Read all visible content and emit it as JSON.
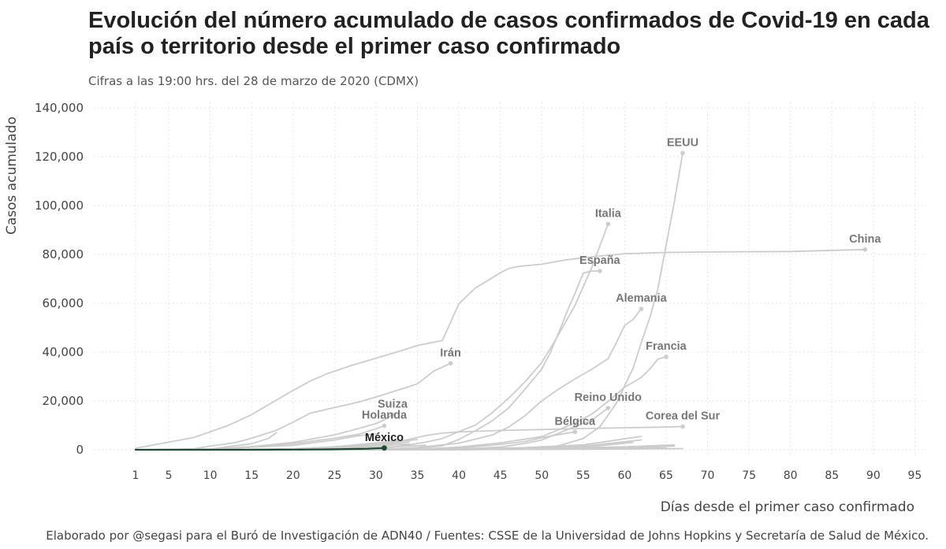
{
  "title": "Evolución del número acumulado de casos confirmados de Covid-19 en cada país o territorio desde el primer caso confirmado",
  "subtitle": "Cifras a las 19:00 hrs. del 28 de marzo de 2020 (CDMX)",
  "caption": "Elaborado por @segasi para el Buró de Investigación de ADN40 / Fuentes: CSSE de la Universidad de Johns Hopkins y Secretaría de Salud de México.",
  "colors": {
    "background_series": "#cccccc",
    "highlight": "#1b4d2e",
    "label": "#777777",
    "grid": "#e6e6e6"
  },
  "chart_data": {
    "type": "line",
    "xlabel": "Días desde el primer caso confirmado",
    "ylabel": "Casos acumulado",
    "xlim": [
      1,
      97
    ],
    "ylim": [
      0,
      140000
    ],
    "x_ticks": [
      1,
      5,
      10,
      15,
      20,
      25,
      30,
      35,
      40,
      45,
      50,
      55,
      60,
      65,
      70,
      75,
      80,
      85,
      90,
      95
    ],
    "y_ticks": [
      0,
      20000,
      40000,
      60000,
      80000,
      100000,
      120000,
      140000
    ],
    "y_tick_labels": [
      "0",
      "20,000",
      "40,000",
      "60,000",
      "80,000",
      "100,000",
      "120,000",
      "140,000"
    ],
    "grid": true,
    "legend": "none",
    "highlight_series": "México",
    "series": [
      {
        "name": "China",
        "x": [
          1,
          8,
          12,
          15,
          18,
          20,
          22,
          24,
          27,
          30,
          33,
          35,
          38,
          40,
          42,
          43,
          44,
          45,
          46,
          47,
          50,
          53,
          56,
          60,
          65,
          70,
          80,
          89
        ],
        "y": [
          600,
          5000,
          9700,
          14400,
          20400,
          24300,
          28000,
          31000,
          34500,
          37500,
          40500,
          42700,
          44700,
          59800,
          66300,
          68300,
          70400,
          72500,
          74200,
          75000,
          76000,
          77800,
          79000,
          80300,
          80800,
          81000,
          81200,
          82000
        ]
      },
      {
        "name": "Italia",
        "x": [
          1,
          20,
          25,
          28,
          30,
          32,
          34,
          36,
          38,
          40,
          42,
          44,
          46,
          48,
          50,
          52,
          54,
          56,
          58
        ],
        "y": [
          2,
          3,
          3,
          150,
          400,
          1100,
          2000,
          3100,
          4600,
          7400,
          10100,
          15100,
          21100,
          27900,
          35700,
          47000,
          59100,
          74400,
          92500
        ]
      },
      {
        "name": "EEUU",
        "x": [
          1,
          30,
          40,
          45,
          48,
          50,
          52,
          55,
          57,
          59,
          61,
          62,
          63,
          64,
          65,
          66,
          67
        ],
        "y": [
          1,
          15,
          60,
          200,
          500,
          1000,
          1600,
          4600,
          9400,
          19100,
          33300,
          43800,
          53700,
          65800,
          83800,
          101600,
          121500
        ]
      },
      {
        "name": "España",
        "x": [
          1,
          30,
          35,
          38,
          40,
          42,
          44,
          46,
          48,
          50,
          51,
          52,
          53,
          54,
          55,
          56,
          57
        ],
        "y": [
          1,
          100,
          600,
          1600,
          4200,
          7800,
          11800,
          17100,
          24900,
          33000,
          39600,
          47600,
          56200,
          64000,
          72300,
          73200,
          73200
        ]
      },
      {
        "name": "Alemania",
        "x": [
          1,
          30,
          35,
          40,
          44,
          46,
          48,
          50,
          52,
          54,
          56,
          58,
          59,
          60,
          61,
          62
        ],
        "y": [
          1,
          150,
          900,
          2700,
          6000,
          9300,
          14000,
          20000,
          24800,
          29000,
          32900,
          37300,
          43900,
          50900,
          53300,
          57700
        ]
      },
      {
        "name": "Francia",
        "x": [
          1,
          30,
          35,
          40,
          45,
          50,
          54,
          56,
          58,
          60,
          62,
          63,
          64,
          65
        ],
        "y": [
          1,
          100,
          200,
          1100,
          2800,
          5400,
          10900,
          14500,
          19800,
          25600,
          29600,
          32900,
          37100,
          38100
        ]
      },
      {
        "name": "Irán",
        "x": [
          1,
          5,
          8,
          10,
          13,
          15,
          18,
          20,
          22,
          25,
          28,
          30,
          33,
          35,
          37,
          39
        ],
        "y": [
          2,
          90,
          400,
          1500,
          2900,
          4700,
          8000,
          11300,
          14900,
          17300,
          19600,
          21600,
          24800,
          27000,
          32300,
          35400
        ]
      },
      {
        "name": "Reino Unido",
        "x": [
          1,
          30,
          35,
          40,
          45,
          48,
          50,
          52,
          54,
          56,
          58
        ],
        "y": [
          2,
          40,
          120,
          300,
          1100,
          2600,
          4000,
          6700,
          9500,
          12000,
          17100
        ]
      },
      {
        "name": "Corea del Sur",
        "x": [
          1,
          10,
          20,
          28,
          30,
          32,
          34,
          36,
          38,
          40,
          45,
          50,
          55,
          60,
          65,
          67
        ],
        "y": [
          1,
          20,
          30,
          800,
          1800,
          2900,
          4300,
          5800,
          6800,
          7300,
          7900,
          8300,
          8700,
          9000,
          9300,
          9500
        ]
      },
      {
        "name": "Suiza",
        "x": [
          1,
          5,
          10,
          15,
          20,
          25,
          28,
          30,
          31,
          32
        ],
        "y": [
          1,
          40,
          300,
          1300,
          3000,
          6100,
          8800,
          10700,
          12300,
          14300
        ]
      },
      {
        "name": "Holanda",
        "x": [
          1,
          5,
          10,
          15,
          20,
          25,
          28,
          30,
          31
        ],
        "y": [
          1,
          20,
          200,
          1100,
          2500,
          4700,
          6400,
          8600,
          9800
        ]
      },
      {
        "name": "Bélgica",
        "x": [
          1,
          30,
          35,
          38,
          40,
          44,
          48,
          50,
          52,
          54
        ],
        "y": [
          1,
          50,
          200,
          400,
          800,
          1800,
          3400,
          4900,
          6200,
          7300
        ]
      },
      {
        "name": "",
        "x": [
          1,
          10,
          15,
          17,
          18
        ],
        "y": [
          1,
          300,
          2500,
          4600,
          7000
        ]
      },
      {
        "name": "",
        "x": [
          1,
          10,
          20,
          25,
          28,
          30
        ],
        "y": [
          1,
          300,
          1800,
          4000,
          5800,
          6500
        ]
      },
      {
        "name": "",
        "x": [
          1,
          30,
          45,
          55,
          62
        ],
        "y": [
          1,
          40,
          400,
          2000,
          5500
        ]
      },
      {
        "name": "",
        "x": [
          1,
          30,
          45,
          55,
          62
        ],
        "y": [
          1,
          30,
          300,
          1500,
          4000
        ]
      },
      {
        "name": "",
        "x": [
          1,
          30,
          45,
          55,
          61
        ],
        "y": [
          1,
          20,
          200,
          1000,
          3000
        ]
      },
      {
        "name": "",
        "x": [
          1,
          30,
          40,
          50,
          60,
          66
        ],
        "y": [
          1,
          10,
          80,
          500,
          1200,
          2000
        ]
      },
      {
        "name": "",
        "x": [
          1,
          30,
          40,
          50,
          60,
          66
        ],
        "y": [
          1,
          10,
          50,
          300,
          800,
          1500
        ]
      },
      {
        "name": "",
        "x": [
          1,
          10,
          20,
          25,
          30,
          35
        ],
        "y": [
          1,
          50,
          300,
          900,
          2500,
          4200
        ]
      },
      {
        "name": "",
        "x": [
          1,
          10,
          20,
          25,
          30,
          33
        ],
        "y": [
          1,
          50,
          400,
          1200,
          2800,
          4000
        ]
      },
      {
        "name": "",
        "x": [
          1,
          20,
          25,
          30,
          34
        ],
        "y": [
          1,
          100,
          600,
          1900,
          3200
        ]
      },
      {
        "name": "",
        "x": [
          1,
          15,
          25,
          30,
          34
        ],
        "y": [
          1,
          80,
          500,
          1500,
          2400
        ]
      },
      {
        "name": "",
        "x": [
          1,
          20,
          30,
          36
        ],
        "y": [
          1,
          200,
          900,
          1800
        ]
      },
      {
        "name": "",
        "x": [
          1,
          30,
          40,
          50,
          56
        ],
        "y": [
          1,
          60,
          350,
          800,
          1200
        ]
      },
      {
        "name": "",
        "x": [
          1,
          25,
          35,
          45,
          52
        ],
        "y": [
          1,
          100,
          400,
          700,
          1000
        ]
      },
      {
        "name": "",
        "x": [
          1,
          40,
          50,
          60,
          65
        ],
        "y": [
          1,
          80,
          250,
          500,
          700
        ]
      },
      {
        "name": "",
        "x": [
          1,
          30,
          45,
          60,
          67
        ],
        "y": [
          1,
          20,
          100,
          300,
          500
        ]
      },
      {
        "name": "México",
        "x": [
          1,
          5,
          10,
          15,
          18,
          20,
          22,
          24,
          25,
          26,
          27,
          28,
          29,
          30,
          31
        ],
        "y": [
          1,
          5,
          7,
          12,
          26,
          53,
          93,
          164,
          203,
          251,
          316,
          367,
          405,
          585,
          717
        ]
      }
    ],
    "labels": [
      {
        "series": "EEUU",
        "text": "EEUU",
        "x": 67,
        "y": 121500
      },
      {
        "series": "Italia",
        "text": "Italia",
        "x": 58,
        "y": 92500
      },
      {
        "series": "China",
        "text": "China",
        "x": 89,
        "y": 82000
      },
      {
        "series": "España",
        "text": "España",
        "x": 57,
        "y": 73200
      },
      {
        "series": "Alemania",
        "text": "Alemania",
        "x": 62,
        "y": 57700
      },
      {
        "series": "Francia",
        "text": "Francia",
        "x": 65,
        "y": 38100
      },
      {
        "series": "Irán",
        "text": "Irán",
        "x": 39,
        "y": 35400
      },
      {
        "series": "Reino Unido",
        "text": "Reino Unido",
        "x": 58,
        "y": 17100
      },
      {
        "series": "Suiza",
        "text": "Suiza",
        "x": 32,
        "y": 14300
      },
      {
        "series": "Holanda",
        "text": "Holanda",
        "x": 31,
        "y": 9800
      },
      {
        "series": "Corea del Sur",
        "text": "Corea del Sur",
        "x": 67,
        "y": 9500
      },
      {
        "series": "Bélgica",
        "text": "Bélgica",
        "x": 54,
        "y": 7300
      },
      {
        "series": "México",
        "text": "México",
        "x": 31,
        "y": 717
      }
    ]
  }
}
